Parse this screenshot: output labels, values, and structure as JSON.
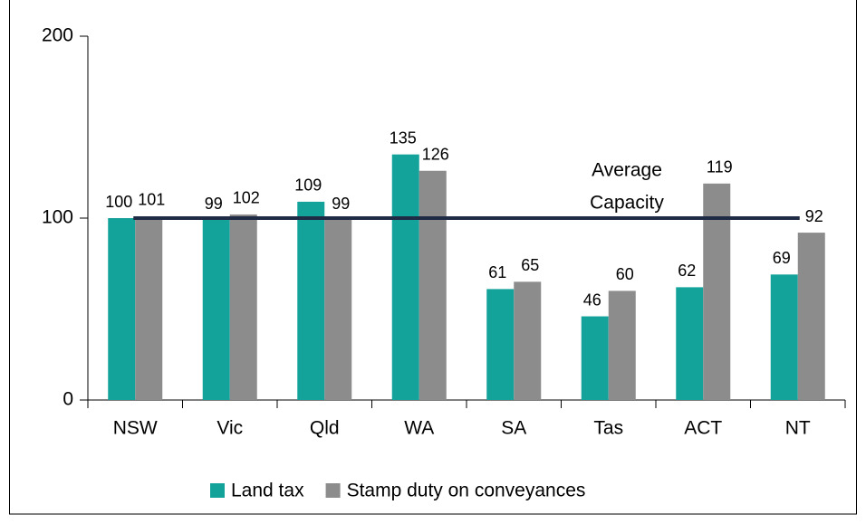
{
  "chart_data": {
    "type": "bar",
    "categories": [
      "NSW",
      "Vic",
      "Qld",
      "WA",
      "SA",
      "Tas",
      "ACT",
      "NT"
    ],
    "series": [
      {
        "name": "Land tax",
        "color": "#14a39a",
        "values": [
          100,
          99,
          109,
          135,
          61,
          46,
          62,
          69
        ]
      },
      {
        "name": "Stamp duty on conveyances",
        "color": "#8c8c8c",
        "values": [
          101,
          102,
          99,
          126,
          65,
          60,
          119,
          92
        ]
      }
    ],
    "ylim": [
      0,
      200
    ],
    "yticks": [
      0,
      100,
      200
    ],
    "average": {
      "text": [
        "Average",
        "Capacity"
      ],
      "value": 100,
      "color": "#1f2a44"
    },
    "legend": "bottom"
  }
}
